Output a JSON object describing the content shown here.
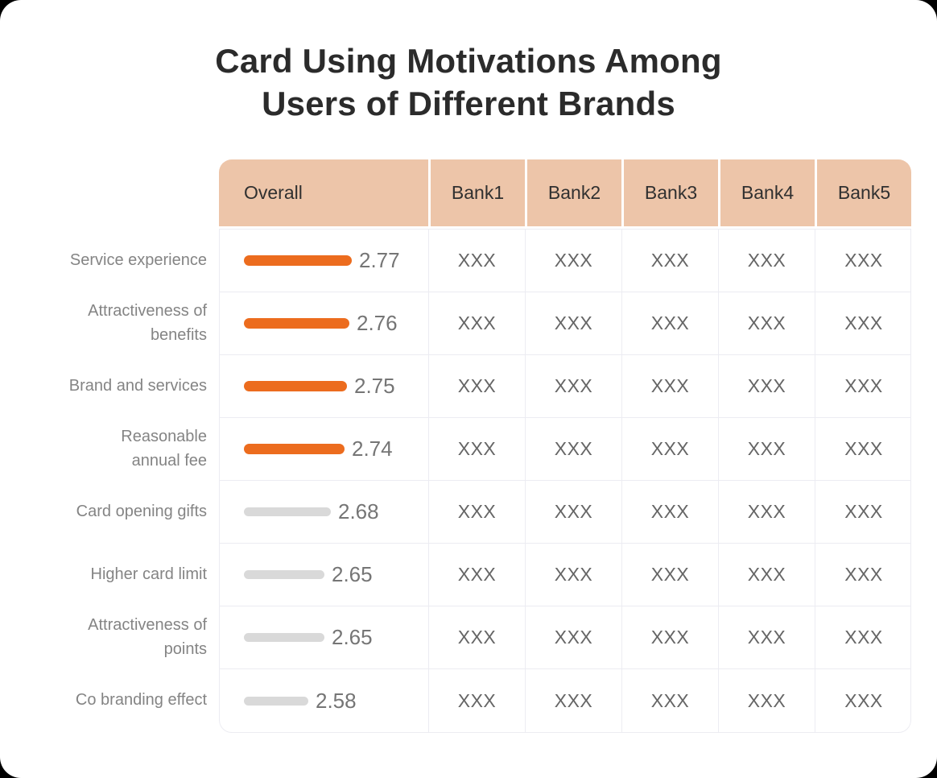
{
  "title": "Card Using Motivations Among Users of Different Brands",
  "colors": {
    "header_bg": "#EDC5A9",
    "bar_highlight": "#EC6C1E",
    "bar_muted": "#D9D9D9",
    "title_text": "#2B2B2B",
    "label_text": "#848484",
    "value_text": "#757575",
    "cell_text": "#666666",
    "grid_border": "#ECECF2"
  },
  "table": {
    "columns": [
      "Overall",
      "Bank1",
      "Bank2",
      "Bank3",
      "Bank4",
      "Bank5"
    ],
    "placeholder": "XXX",
    "rows": [
      {
        "label": "Service experience",
        "value": "2.77",
        "bar": "orange",
        "banks": [
          "XXX",
          "XXX",
          "XXX",
          "XXX",
          "XXX"
        ]
      },
      {
        "label": "Attractiveness of benefits",
        "value": "2.76",
        "bar": "orange",
        "banks": [
          "XXX",
          "XXX",
          "XXX",
          "XXX",
          "XXX"
        ]
      },
      {
        "label": "Brand and services",
        "value": "2.75",
        "bar": "orange",
        "banks": [
          "XXX",
          "XXX",
          "XXX",
          "XXX",
          "XXX"
        ]
      },
      {
        "label": "Reasonable annual fee",
        "value": "2.74",
        "bar": "orange",
        "banks": [
          "XXX",
          "XXX",
          "XXX",
          "XXX",
          "XXX"
        ]
      },
      {
        "label": "Card opening gifts",
        "value": "2.68",
        "bar": "gray",
        "banks": [
          "XXX",
          "XXX",
          "XXX",
          "XXX",
          "XXX"
        ]
      },
      {
        "label": "Higher card limit",
        "value": "2.65",
        "bar": "gray",
        "banks": [
          "XXX",
          "XXX",
          "XXX",
          "XXX",
          "XXX"
        ]
      },
      {
        "label": "Attractiveness of points",
        "value": "2.65",
        "bar": "gray",
        "banks": [
          "XXX",
          "XXX",
          "XXX",
          "XXX",
          "XXX"
        ]
      },
      {
        "label": "Co branding effect",
        "value": "2.58",
        "bar": "gray",
        "banks": [
          "XXX",
          "XXX",
          "XXX",
          "XXX",
          "XXX"
        ]
      }
    ]
  },
  "chart_data": {
    "type": "bar",
    "orientation": "horizontal",
    "title": "Card Using Motivations Among Users of Different Brands",
    "series_label": "Overall",
    "categories": [
      "Service experience",
      "Attractiveness of benefits",
      "Brand and services",
      "Reasonable annual fee",
      "Card opening gifts",
      "Higher card limit",
      "Attractiveness of points",
      "Co branding effect"
    ],
    "values": [
      2.77,
      2.76,
      2.75,
      2.74,
      2.68,
      2.65,
      2.65,
      2.58
    ],
    "highlighted_categories": [
      "Service experience",
      "Attractiveness of benefits",
      "Brand and services",
      "Reasonable annual fee"
    ],
    "value_axis_implied_range": [
      2.3,
      2.8
    ],
    "grid": false,
    "legend": false,
    "bank_columns_placeholder": "XXX"
  }
}
